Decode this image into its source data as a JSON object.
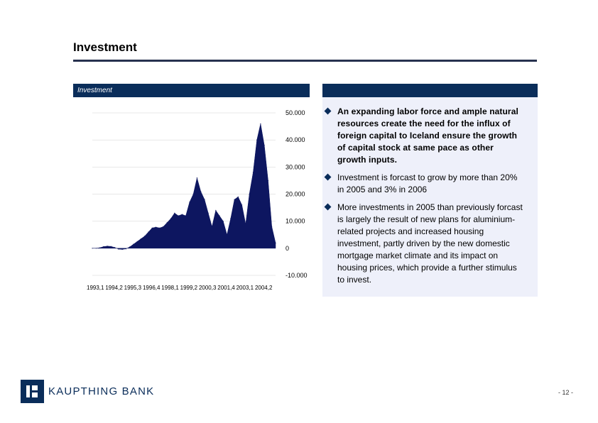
{
  "page": {
    "title": "Investment",
    "section_label": "Investment",
    "brand": "KAUPTHING BANK",
    "page_number": "- 12 -"
  },
  "bullets": [
    "An expanding labor force and ample natural resources create the need for the influx of foreign capital to Iceland ensure the growth of capital stock at same pace as other growth inputs.",
    "Investment is forcast to grow by more than 20% in 2005 and 3% in 2006",
    "More investments in 2005 than previously forcast is largely the result of new plans for aluminium-related projects and increased housing investment, partly driven by the new domestic mortgage market climate and its impact on housing prices, which provide a further stimulus to invest."
  ],
  "colors": {
    "navy": "#0a2d5a",
    "area_fill": "#0d1660",
    "panel_bg": "#eef0fa"
  },
  "chart_data": {
    "type": "area",
    "xlabel": "",
    "ylabel": "",
    "ylim": [
      -10000,
      50000
    ],
    "yticks": [
      "50.000",
      "40.000",
      "30.000",
      "20.000",
      "10.000",
      "0",
      "-10.000"
    ],
    "ytick_values": [
      50000,
      40000,
      30000,
      20000,
      10000,
      0,
      -10000
    ],
    "xticks": [
      "1993,1",
      "1994,2",
      "1995,3",
      "1996,4",
      "1998,1",
      "1999,2",
      "2000,3",
      "2001,4",
      "2003,1",
      "2004,2"
    ],
    "x": [
      "1993,1",
      "1993,2",
      "1993,3",
      "1993,4",
      "1994,1",
      "1994,2",
      "1994,3",
      "1994,4",
      "1995,1",
      "1995,2",
      "1995,3",
      "1995,4",
      "1996,1",
      "1996,2",
      "1996,3",
      "1996,4",
      "1997,1",
      "1997,2",
      "1997,3",
      "1997,4",
      "1998,1",
      "1998,2",
      "1998,3",
      "1998,4",
      "1999,1",
      "1999,2",
      "1999,3",
      "1999,4",
      "2000,1",
      "2000,2",
      "2000,3",
      "2000,4",
      "2001,1",
      "2001,2",
      "2001,3",
      "2001,4",
      "2002,1",
      "2002,2",
      "2002,3",
      "2002,4",
      "2003,1",
      "2003,2",
      "2003,3",
      "2003,4",
      "2004,1",
      "2004,2",
      "2004,3",
      "2004,4",
      "2005,1",
      "2005,2"
    ],
    "values": [
      0,
      0,
      200,
      600,
      800,
      700,
      300,
      -300,
      -400,
      -200,
      500,
      1500,
      2500,
      3500,
      4500,
      6000,
      7500,
      7800,
      7500,
      8000,
      9500,
      11000,
      13000,
      12000,
      12500,
      12000,
      17000,
      20000,
      26000,
      21000,
      18000,
      13000,
      8000,
      14000,
      12000,
      10000,
      5000,
      11000,
      18000,
      19000,
      16000,
      9000,
      20000,
      28000,
      40000,
      46000,
      38000,
      25000,
      8000,
      2000
    ]
  }
}
